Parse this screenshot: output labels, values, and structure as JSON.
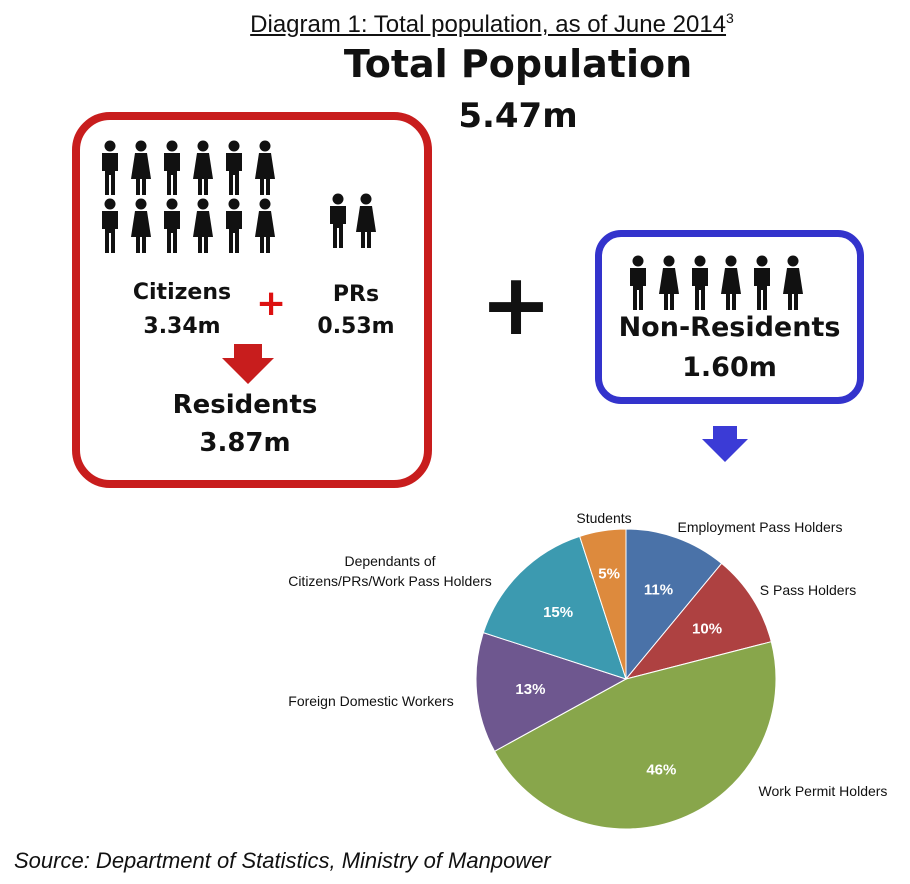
{
  "heading": {
    "text": "Diagram 1: Total population, as of June 2014",
    "footnote": "3"
  },
  "total": {
    "title": "Total Population",
    "value": "5.47m"
  },
  "residents": {
    "citizens_label": "Citizens",
    "citizens_value": "3.34m",
    "prs_label": "PRs",
    "prs_value": "0.53m",
    "plus": "+",
    "residents_label": "Residents",
    "residents_value": "3.87m"
  },
  "big_plus": "+",
  "non_residents": {
    "label": "Non-Residents",
    "value": "1.60m"
  },
  "colors": {
    "residents_border": "#c81d1d",
    "non_residents_border": "#3333cc",
    "arrow_red": "#c81d1d",
    "arrow_blue": "#3b3bd6"
  },
  "chart_data": {
    "type": "pie",
    "start_angle_deg": 0,
    "direction": "clockwise",
    "slices": [
      {
        "label": "Employment Pass Holders",
        "value": 11,
        "display": "11%",
        "color": "#4a72a8"
      },
      {
        "label": "S Pass Holders",
        "value": 10,
        "display": "10%",
        "color": "#ae4141"
      },
      {
        "label": "Work Permit Holders",
        "value": 46,
        "display": "46%",
        "color": "#88a64b"
      },
      {
        "label": "Foreign Domestic Workers",
        "value": 13,
        "display": "13%",
        "color": "#6e578f"
      },
      {
        "label": "Dependants of\nCitizens/PRs/Work Pass Holders",
        "value": 15,
        "display": "15%",
        "color": "#3c9ab0"
      },
      {
        "label": "Students",
        "value": 5,
        "display": "5%",
        "color": "#dd8a3d"
      }
    ]
  },
  "source": "Source: Department of Statistics, Ministry of Manpower"
}
